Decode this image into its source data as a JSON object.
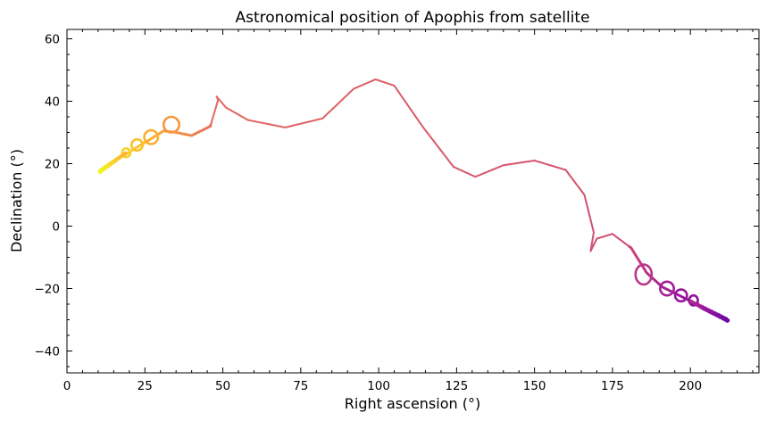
{
  "chart_data": {
    "type": "scatter",
    "title": "Astronomical position of Apophis from satellite",
    "xlabel": "Right ascension (°)",
    "ylabel": "Declination (°)",
    "xlim": [
      0,
      222
    ],
    "ylim": [
      -47,
      63
    ],
    "xticks": [
      0,
      25,
      50,
      75,
      100,
      125,
      150,
      175,
      200
    ],
    "yticks": [
      -40,
      -20,
      0,
      20,
      40,
      60
    ],
    "x_minor_step": 5,
    "y_minor_step": 5,
    "ticks_direction": "in",
    "ticks_on_all_sides": true,
    "grid": false,
    "legend": "none",
    "colormap": [
      "#5a00a3",
      "#9c179e",
      "#cc4778",
      "#ed7953",
      "#fdb42f",
      "#f0f921"
    ],
    "color_by": "time (early = purple, late = yellow)",
    "path_keypoints": [
      {
        "x": 212,
        "y": -30.2
      },
      {
        "x": 208,
        "y": -28.5
      },
      {
        "x": 204,
        "y": -26.5
      },
      {
        "x": 200,
        "y": -24
      },
      {
        "x": 196,
        "y": -22
      },
      {
        "x": 191,
        "y": -19.5
      },
      {
        "x": 186,
        "y": -15
      },
      {
        "x": 181,
        "y": -7
      },
      {
        "x": 175,
        "y": -2.5
      },
      {
        "x": 170,
        "y": -4
      },
      {
        "x": 168,
        "y": -8
      },
      {
        "x": 169,
        "y": -2
      },
      {
        "x": 168,
        "y": 2
      },
      {
        "x": 166,
        "y": 10
      },
      {
        "x": 160,
        "y": 18
      },
      {
        "x": 150,
        "y": 21
      },
      {
        "x": 140,
        "y": 19.5
      },
      {
        "x": 131,
        "y": 15.8
      },
      {
        "x": 124,
        "y": 19
      },
      {
        "x": 114,
        "y": 32
      },
      {
        "x": 105,
        "y": 45
      },
      {
        "x": 99,
        "y": 47
      },
      {
        "x": 92,
        "y": 44
      },
      {
        "x": 82,
        "y": 34.5
      },
      {
        "x": 70,
        "y": 31.6
      },
      {
        "x": 58,
        "y": 34
      },
      {
        "x": 51,
        "y": 38
      },
      {
        "x": 48,
        "y": 41.5
      },
      {
        "x": 48.5,
        "y": 40.5
      },
      {
        "x": 46,
        "y": 32
      },
      {
        "x": 40,
        "y": 29
      },
      {
        "x": 35,
        "y": 30
      },
      {
        "x": 31,
        "y": 30.5
      },
      {
        "x": 27,
        "y": 28
      },
      {
        "x": 22,
        "y": 25
      },
      {
        "x": 18,
        "y": 22.5
      },
      {
        "x": 14,
        "y": 20
      },
      {
        "x": 10.5,
        "y": 17.5
      }
    ],
    "loops": [
      {
        "x": 201,
        "y": -23.8,
        "rx": 1.4,
        "ry": 1.6
      },
      {
        "x": 197,
        "y": -22.2,
        "rx": 1.9,
        "ry": 1.9
      },
      {
        "x": 192.5,
        "y": -20,
        "rx": 2.2,
        "ry": 2.2
      },
      {
        "x": 185,
        "y": -15.5,
        "rx": 2.6,
        "ry": 3.2
      },
      {
        "x": 33.5,
        "y": 32.5,
        "rx": 2.5,
        "ry": 2.5
      },
      {
        "x": 27,
        "y": 28.5,
        "rx": 2.2,
        "ry": 2.2
      },
      {
        "x": 22.5,
        "y": 26,
        "rx": 1.8,
        "ry": 1.8
      },
      {
        "x": 19,
        "y": 23.5,
        "rx": 1.3,
        "ry": 1.4
      }
    ]
  }
}
